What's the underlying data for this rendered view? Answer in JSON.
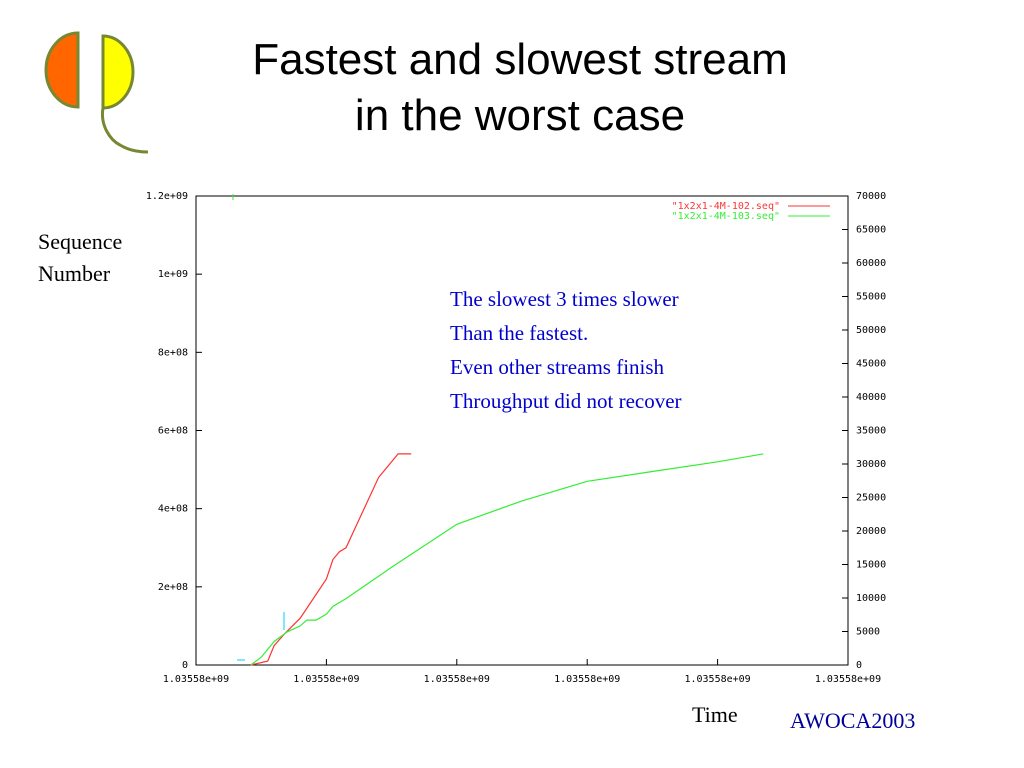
{
  "slide": {
    "title_line1": "Fastest and slowest stream",
    "title_line2": "in the worst case",
    "ylabel_line1": "Sequence",
    "ylabel_line2": "Number",
    "xlabel": "Time",
    "footer": "AWOCA2003",
    "annotation": [
      "The slowest 3 times slower",
      "Than the fastest.",
      "Even other streams finish",
      "Throughput did not recover"
    ]
  },
  "chart_data": {
    "type": "line",
    "title": "",
    "xlabel": "Time",
    "ylabel": "Sequence Number",
    "x_ticks": [
      "1.03558e+09",
      "1.03558e+09",
      "1.03558e+09",
      "1.03558e+09",
      "1.03558e+09",
      "1.03558e+09"
    ],
    "y_ticks": [
      "0",
      "2e+08",
      "4e+08",
      "6e+08",
      "8e+08",
      "1e+09",
      "1.2e+09"
    ],
    "y2_ticks": [
      "0",
      "5000",
      "10000",
      "15000",
      "20000",
      "25000",
      "30000",
      "35000",
      "40000",
      "45000",
      "50000",
      "55000",
      "60000",
      "65000",
      "70000"
    ],
    "ylim": [
      0,
      1200000000
    ],
    "y2lim": [
      0,
      70000
    ],
    "xlim": [
      0,
      5
    ],
    "grid": false,
    "legend_position": "top-right",
    "series": [
      {
        "name": "\"1x2x1-4M-102.seq\"",
        "color": "#ff3333",
        "points": [
          [
            0.42,
            0
          ],
          [
            0.55,
            10000000.0
          ],
          [
            0.6,
            50000000.0
          ],
          [
            0.68,
            80000000.0
          ],
          [
            0.8,
            120000000.0
          ],
          [
            1.0,
            220000000.0
          ],
          [
            1.05,
            270000000.0
          ],
          [
            1.1,
            290000000.0
          ],
          [
            1.15,
            300000000.0
          ],
          [
            1.4,
            480000000.0
          ],
          [
            1.55,
            540000000.0
          ],
          [
            1.65,
            540000000.0
          ]
        ]
      },
      {
        "name": "\"1x2x1-4M-103.seq\"",
        "color": "#33ee33",
        "points": [
          [
            0.42,
            0
          ],
          [
            0.5,
            20000000.0
          ],
          [
            0.6,
            60000000.0
          ],
          [
            0.7,
            85000000.0
          ],
          [
            0.8,
            100000000.0
          ],
          [
            0.85,
            115000000.0
          ],
          [
            0.92,
            115000000.0
          ],
          [
            1.0,
            130000000.0
          ],
          [
            1.05,
            150000000.0
          ],
          [
            1.15,
            170000000.0
          ],
          [
            1.5,
            250000000.0
          ],
          [
            2.0,
            360000000.0
          ],
          [
            2.5,
            420000000.0
          ],
          [
            3.0,
            470000000.0
          ],
          [
            3.5,
            495000000.0
          ],
          [
            4.0,
            520000000.0
          ],
          [
            4.35,
            540000000.0
          ]
        ]
      }
    ]
  }
}
